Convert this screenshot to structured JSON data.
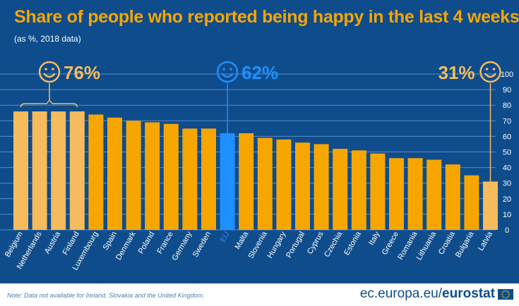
{
  "chart_data": {
    "type": "bar",
    "title": "Share of people who reported being happy in the last 4 weeks",
    "subtitle": "(as %, 2018 data)",
    "categories": [
      "Belgium",
      "Netherlands",
      "Austria",
      "Finland",
      "Luxembourg",
      "Spain",
      "Denmark",
      "Poland",
      "France",
      "Germany",
      "Sweden",
      "EU",
      "Malta",
      "Slovenia",
      "Hungary",
      "Portugal",
      "Cyprus",
      "Czechia",
      "Estonia",
      "Italy",
      "Greece",
      "Romania",
      "Lithuania",
      "Croatia",
      "Bulgaria",
      "Latvia"
    ],
    "values": [
      76,
      76,
      76,
      76,
      74,
      72,
      70,
      69,
      68,
      65,
      65,
      62,
      62,
      59,
      58,
      56,
      55,
      52,
      51,
      49,
      46,
      46,
      45,
      42,
      35,
      31
    ],
    "ylim": [
      0,
      100
    ],
    "yticks": [
      0,
      10,
      20,
      30,
      40,
      50,
      60,
      70,
      80,
      90,
      100
    ],
    "y_axis_side": "right",
    "grid": true,
    "highlights": {
      "top": {
        "label": "76%",
        "categories": [
          "Belgium",
          "Netherlands",
          "Austria",
          "Finland"
        ]
      },
      "eu": {
        "label": "62%",
        "category": "EU"
      },
      "bottom": {
        "label": "31%",
        "category": "Latvia"
      }
    },
    "colors": {
      "background": "#0e4c8c",
      "bar": "#f7a600",
      "bar_extreme": "#f5bb5c",
      "bar_eu": "#1e90ff",
      "grid": "#5f8bbf",
      "text": "#ffffff"
    }
  },
  "footer": {
    "note": "Note: Data not available for Ireland, Slovakia and the United Kingdom.",
    "brand_prefix": "ec.europa.eu/",
    "brand_name": "eurostat",
    "flag_icon": "eu-flag-icon"
  }
}
